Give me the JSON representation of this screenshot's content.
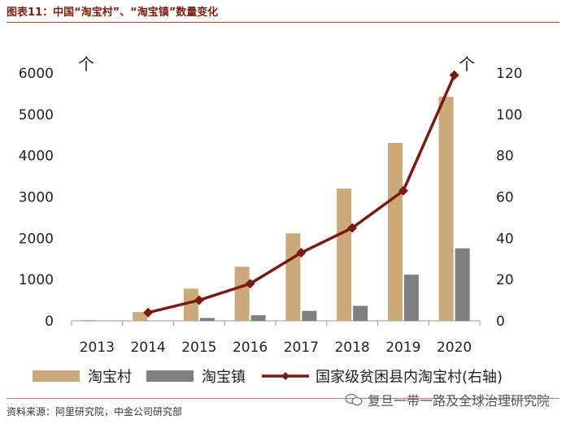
{
  "header": {
    "title": "图表11：中国“淘宝村”、“淘宝镇”数量变化"
  },
  "footer": {
    "source": "资料来源：阿里研究院，中金公司研究部",
    "watermark": "复旦一带一路及全球治理研究院"
  },
  "colors": {
    "taobao_village": "#cba97a",
    "taobao_town": "#7f7f7f",
    "line": "#7b1b0f",
    "title": "#7a1f12"
  },
  "chart_data": {
    "type": "bar+line",
    "categories": [
      "2013",
      "2014",
      "2015",
      "2016",
      "2017",
      "2018",
      "2019",
      "2020"
    ],
    "series": [
      {
        "name": "淘宝村",
        "type": "bar",
        "axis": "left",
        "values": [
          20,
          212,
          780,
          1311,
          2118,
          3202,
          4310,
          5425
        ]
      },
      {
        "name": "淘宝镇",
        "type": "bar",
        "axis": "left",
        "values": [
          0,
          0,
          71,
          135,
          242,
          363,
          1118,
          1756
        ]
      },
      {
        "name": "国家级贫困县内淘宝村(右轴)",
        "type": "line",
        "axis": "right",
        "values": [
          null,
          4,
          10,
          18,
          33,
          45,
          63,
          119
        ]
      }
    ],
    "left_axis": {
      "unit": "个",
      "ylim": [
        0,
        6000
      ],
      "ticks": [
        "0",
        "1000",
        "2000",
        "3000",
        "4000",
        "5000",
        "6000"
      ]
    },
    "right_axis": {
      "unit": "个",
      "ylim": [
        0,
        120
      ],
      "ticks": [
        "0",
        "20",
        "40",
        "60",
        "80",
        "100",
        "120"
      ]
    },
    "legend": [
      "淘宝村",
      "淘宝镇",
      "国家级贫困县内淘宝村(右轴)"
    ]
  }
}
